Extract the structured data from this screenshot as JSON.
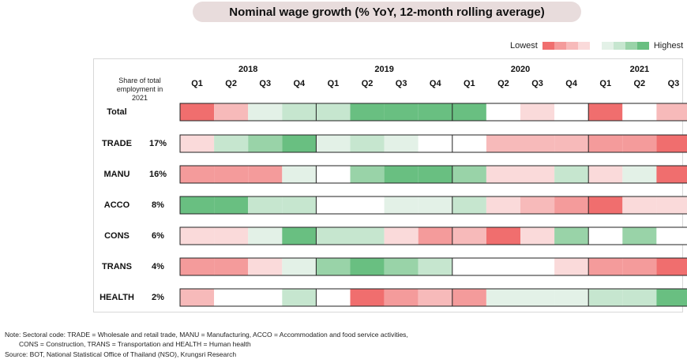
{
  "title": "Nominal wage growth (% YoY, 12-month rolling average)",
  "legend": {
    "low_label": "Lowest",
    "high_label": "Highest",
    "colors": [
      "#f06e6e",
      "#f49b9b",
      "#f7baba",
      "#fadada",
      "#ffffff",
      "#e3f1e7",
      "#c6e6cf",
      "#99d3a8",
      "#69bf81"
    ]
  },
  "share_header": "Share of total employment in 2021",
  "chart_data": {
    "type": "heatmap",
    "years": [
      {
        "label": "2018",
        "quarters": [
          "Q1",
          "Q2",
          "Q3",
          "Q4"
        ]
      },
      {
        "label": "2019",
        "quarters": [
          "Q1",
          "Q2",
          "Q3",
          "Q4"
        ]
      },
      {
        "label": "2020",
        "quarters": [
          "Q1",
          "Q2",
          "Q3",
          "Q4"
        ]
      },
      {
        "label": "2021",
        "quarters": [
          "Q1",
          "Q2",
          "Q3"
        ]
      }
    ],
    "scale": {
      "min": -4,
      "max": 4
    },
    "rows": [
      {
        "label": "Total",
        "share": "",
        "values": [
          -4,
          -2,
          1,
          2,
          2,
          4,
          4,
          4,
          4,
          0,
          -1,
          0,
          -4,
          0,
          -2
        ]
      },
      {
        "label": "TRADE",
        "share": "17%",
        "values": [
          -1,
          2,
          3,
          4,
          1,
          2,
          1,
          0,
          0,
          -2,
          -2,
          -2,
          -3,
          -3,
          -4
        ]
      },
      {
        "label": "MANU",
        "share": "16%",
        "values": [
          -3,
          -3,
          -3,
          1,
          0,
          3,
          4,
          4,
          3,
          -1,
          -1,
          2,
          -1,
          1,
          -4
        ]
      },
      {
        "label": "ACCO",
        "share": "8%",
        "values": [
          4,
          4,
          2,
          2,
          0,
          0,
          1,
          1,
          2,
          -1,
          -2,
          -3,
          -4,
          -1,
          -1
        ]
      },
      {
        "label": "CONS",
        "share": "6%",
        "values": [
          -1,
          -1,
          1,
          4,
          2,
          2,
          -1,
          -3,
          -2,
          -4,
          -1,
          3,
          0,
          3,
          0
        ]
      },
      {
        "label": "TRANS",
        "share": "4%",
        "values": [
          -3,
          -3,
          -1,
          1,
          3,
          4,
          3,
          2,
          0,
          0,
          0,
          -1,
          -3,
          -3,
          -4
        ]
      },
      {
        "label": "HEALTH",
        "share": "2%",
        "values": [
          -2,
          0,
          0,
          2,
          0,
          -4,
          -3,
          -2,
          -3,
          1,
          1,
          1,
          2,
          2,
          4
        ]
      }
    ]
  },
  "notes": {
    "line1": "Note: Sectoral code: TRADE = Wholesale and retail trade, MANU = Manufacturing, ACCO = Accommodation and food service activities,",
    "line2": "CONS = Construction, TRANS = Transportation and HEALTH = Human health",
    "source": "Source: BOT, National Statistical Office of Thailand (NSO), Krungsri Research"
  }
}
